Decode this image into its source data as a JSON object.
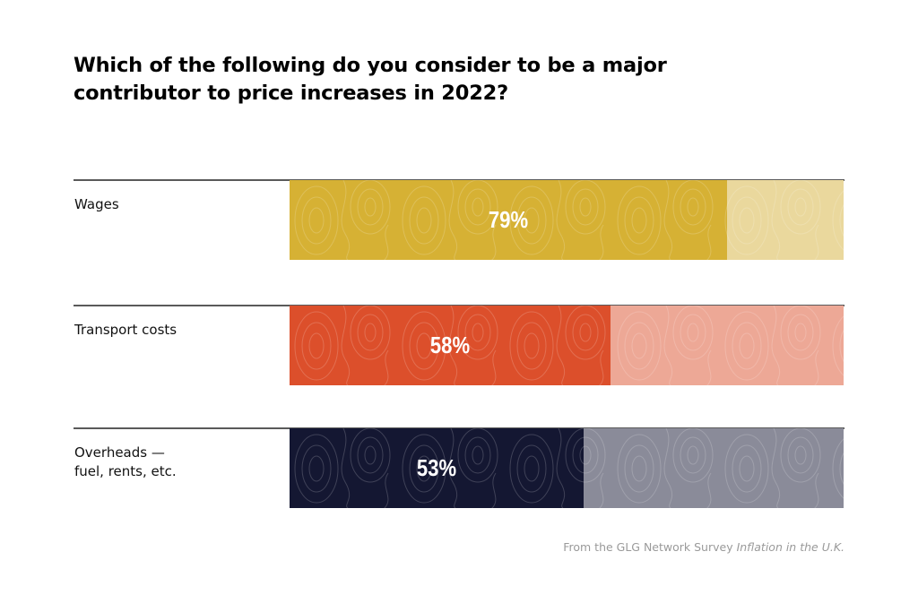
{
  "title": "Which of the following do you consider to be a major contributor to price increases in 2022?",
  "source": {
    "prefix": "From the GLG Network Survey ",
    "italic": "Inflation in the U.K."
  },
  "chart_data": {
    "type": "bar",
    "orientation": "horizontal",
    "title": "Which of the following do you consider to be a major contributor to price increases in 2022?",
    "categories": [
      "Wages",
      "Transport costs",
      "Overheads — fuel, rents, etc."
    ],
    "values": [
      79,
      58,
      53
    ],
    "value_labels": [
      "79%",
      "58%",
      "53%"
    ],
    "unit": "%",
    "xlim": [
      0,
      100
    ],
    "xlabel": "",
    "ylabel": "",
    "grid": false,
    "legend": "none",
    "colors": [
      {
        "fill": "#d6b134",
        "rest": "#ead89d"
      },
      {
        "fill": "#dc4f2b",
        "rest": "#eda896"
      },
      {
        "fill": "#141732",
        "rest": "#8a8b99"
      }
    ],
    "annotation": "From the GLG Network Survey Inflation in the U.K."
  },
  "rows": [
    {
      "label_lines": [
        "Wages"
      ]
    },
    {
      "label_lines": [
        "Transport costs"
      ]
    },
    {
      "label_lines": [
        "Overheads —",
        "fuel, rents, etc."
      ]
    }
  ]
}
